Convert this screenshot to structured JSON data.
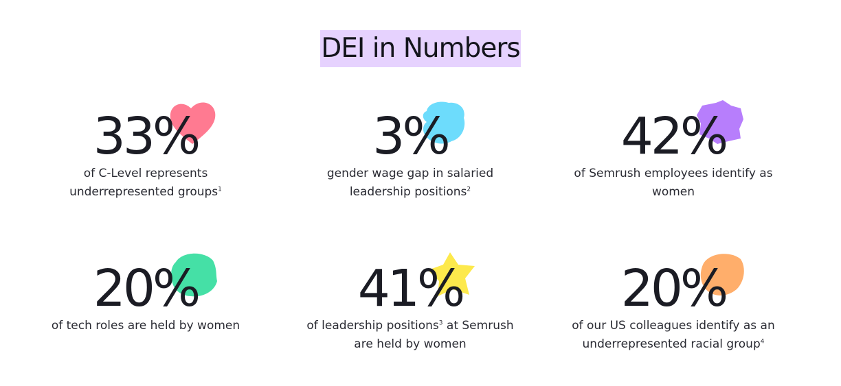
{
  "title": "DEI in Numbers",
  "colors": {
    "title_highlight": "#e6d2fe",
    "text": "#1b1c24"
  },
  "stats": [
    {
      "value": "33%",
      "desc_before": "of C-Level represents underrepresented groups",
      "footnote": "1",
      "desc_after": "",
      "shape": "heart-icon",
      "color": "#ff7a91"
    },
    {
      "value": "3%",
      "desc_before": "gender wage gap in salaried leadership positions",
      "footnote": "2",
      "desc_after": "",
      "shape": "cloud-blob-icon",
      "color": "#6ddcfc"
    },
    {
      "value": "42%",
      "desc_before": "of Semrush employees identify as women",
      "footnote": "",
      "desc_after": "",
      "shape": "splat-icon",
      "color": "#b77efc"
    },
    {
      "value": "20%",
      "desc_before": "of tech roles are held by women",
      "footnote": "",
      "desc_after": "",
      "shape": "green-blob-icon",
      "color": "#45e0a6"
    },
    {
      "value": "41%",
      "desc_before": "of leadership positions",
      "footnote": "3",
      "desc_after": " at Semrush are held by women",
      "shape": "star-icon",
      "color": "#fde94c"
    },
    {
      "value": "20%",
      "desc_before": "of our US colleagues identify as an underrepresented racial group",
      "footnote": "4",
      "desc_after": "",
      "shape": "orange-blob-icon",
      "color": "#ffae6b"
    }
  ]
}
